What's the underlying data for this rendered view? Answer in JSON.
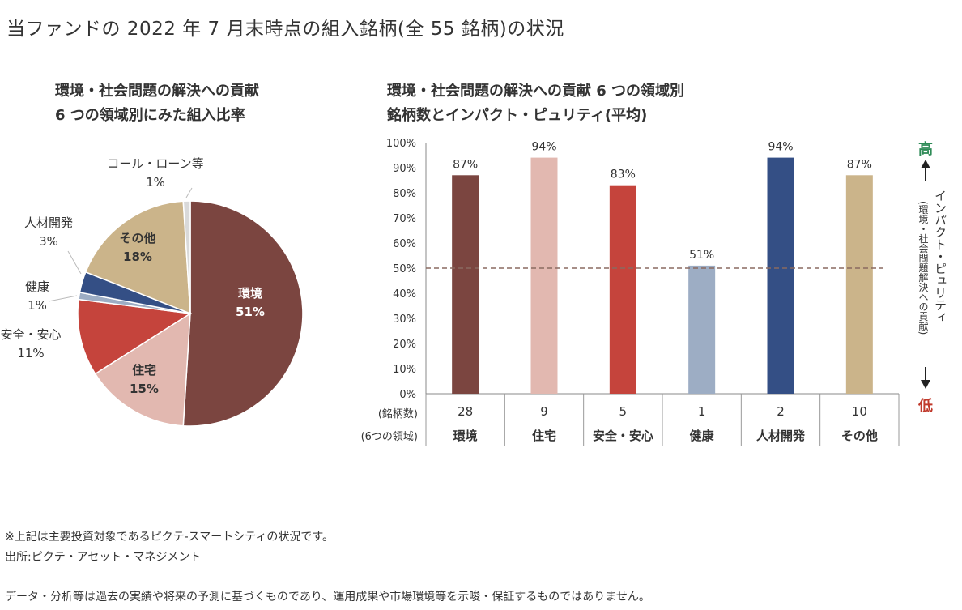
{
  "page_title": "当ファンドの 2022 年 7 月末時点の組入銘柄(全 55 銘柄)の状況",
  "colors": {
    "環境": "#7b4540",
    "住宅": "#e2b8b0",
    "安全・安心": "#c5443c",
    "健康": "#9dadc4",
    "人材開発": "#344f85",
    "その他": "#cbb48a",
    "コール・ローン等": "#d9d9d9",
    "high": "#2e8b57",
    "low": "#c0392b"
  },
  "chart_data": [
    {
      "type": "pie",
      "title_lines": [
        "環境・社会問題の解決への貢献",
        "6 つの領域別にみた組入比率"
      ],
      "slices": [
        {
          "label": "環境",
          "value": 51,
          "value_text": "51%"
        },
        {
          "label": "住宅",
          "value": 15,
          "value_text": "15%"
        },
        {
          "label": "安全・安心",
          "value": 11,
          "value_text": "11%"
        },
        {
          "label": "健康",
          "value": 1,
          "value_text": "1%"
        },
        {
          "label": "人材開発",
          "value": 3,
          "value_text": "3%"
        },
        {
          "label": "その他",
          "value": 18,
          "value_text": "18%"
        },
        {
          "label": "コール・ローン等",
          "value": 1,
          "value_text": "1%"
        }
      ]
    },
    {
      "type": "bar",
      "title_lines": [
        "環境・社会問題の解決への貢献 6 つの領域別",
        "銘柄数とインパクト・ピュリティ(平均)"
      ],
      "categories": [
        "環境",
        "住宅",
        "安全・安心",
        "健康",
        "人材開発",
        "その他"
      ],
      "values": [
        87,
        94,
        83,
        51,
        94,
        87
      ],
      "value_labels": [
        "87%",
        "94%",
        "83%",
        "51%",
        "94%",
        "87%"
      ],
      "counts": [
        "28",
        "9",
        "5",
        "1",
        "2",
        "10"
      ],
      "count_row_label": "(銘柄数)",
      "category_row_label": "(6つの領域)",
      "ylim": [
        0,
        100
      ],
      "yticks": [
        "0%",
        "10%",
        "20%",
        "30%",
        "40%",
        "50%",
        "60%",
        "70%",
        "80%",
        "90%",
        "100%"
      ],
      "reference_line": 50,
      "right_axis": {
        "high": "高",
        "low": "低",
        "label": "インパクト・ピュリティ",
        "sublabel": "(環境・社会問題解決への貢献)"
      }
    }
  ],
  "notes": [
    "※上記は主要投資対象であるピクテ-スマートシティの状況です。",
    "出所:ピクテ・アセット・マネジメント",
    "データ・分析等は過去の実績や将来の予測に基づくものであり、運用成果や市場環境等を示唆・保証するものではありません。"
  ]
}
